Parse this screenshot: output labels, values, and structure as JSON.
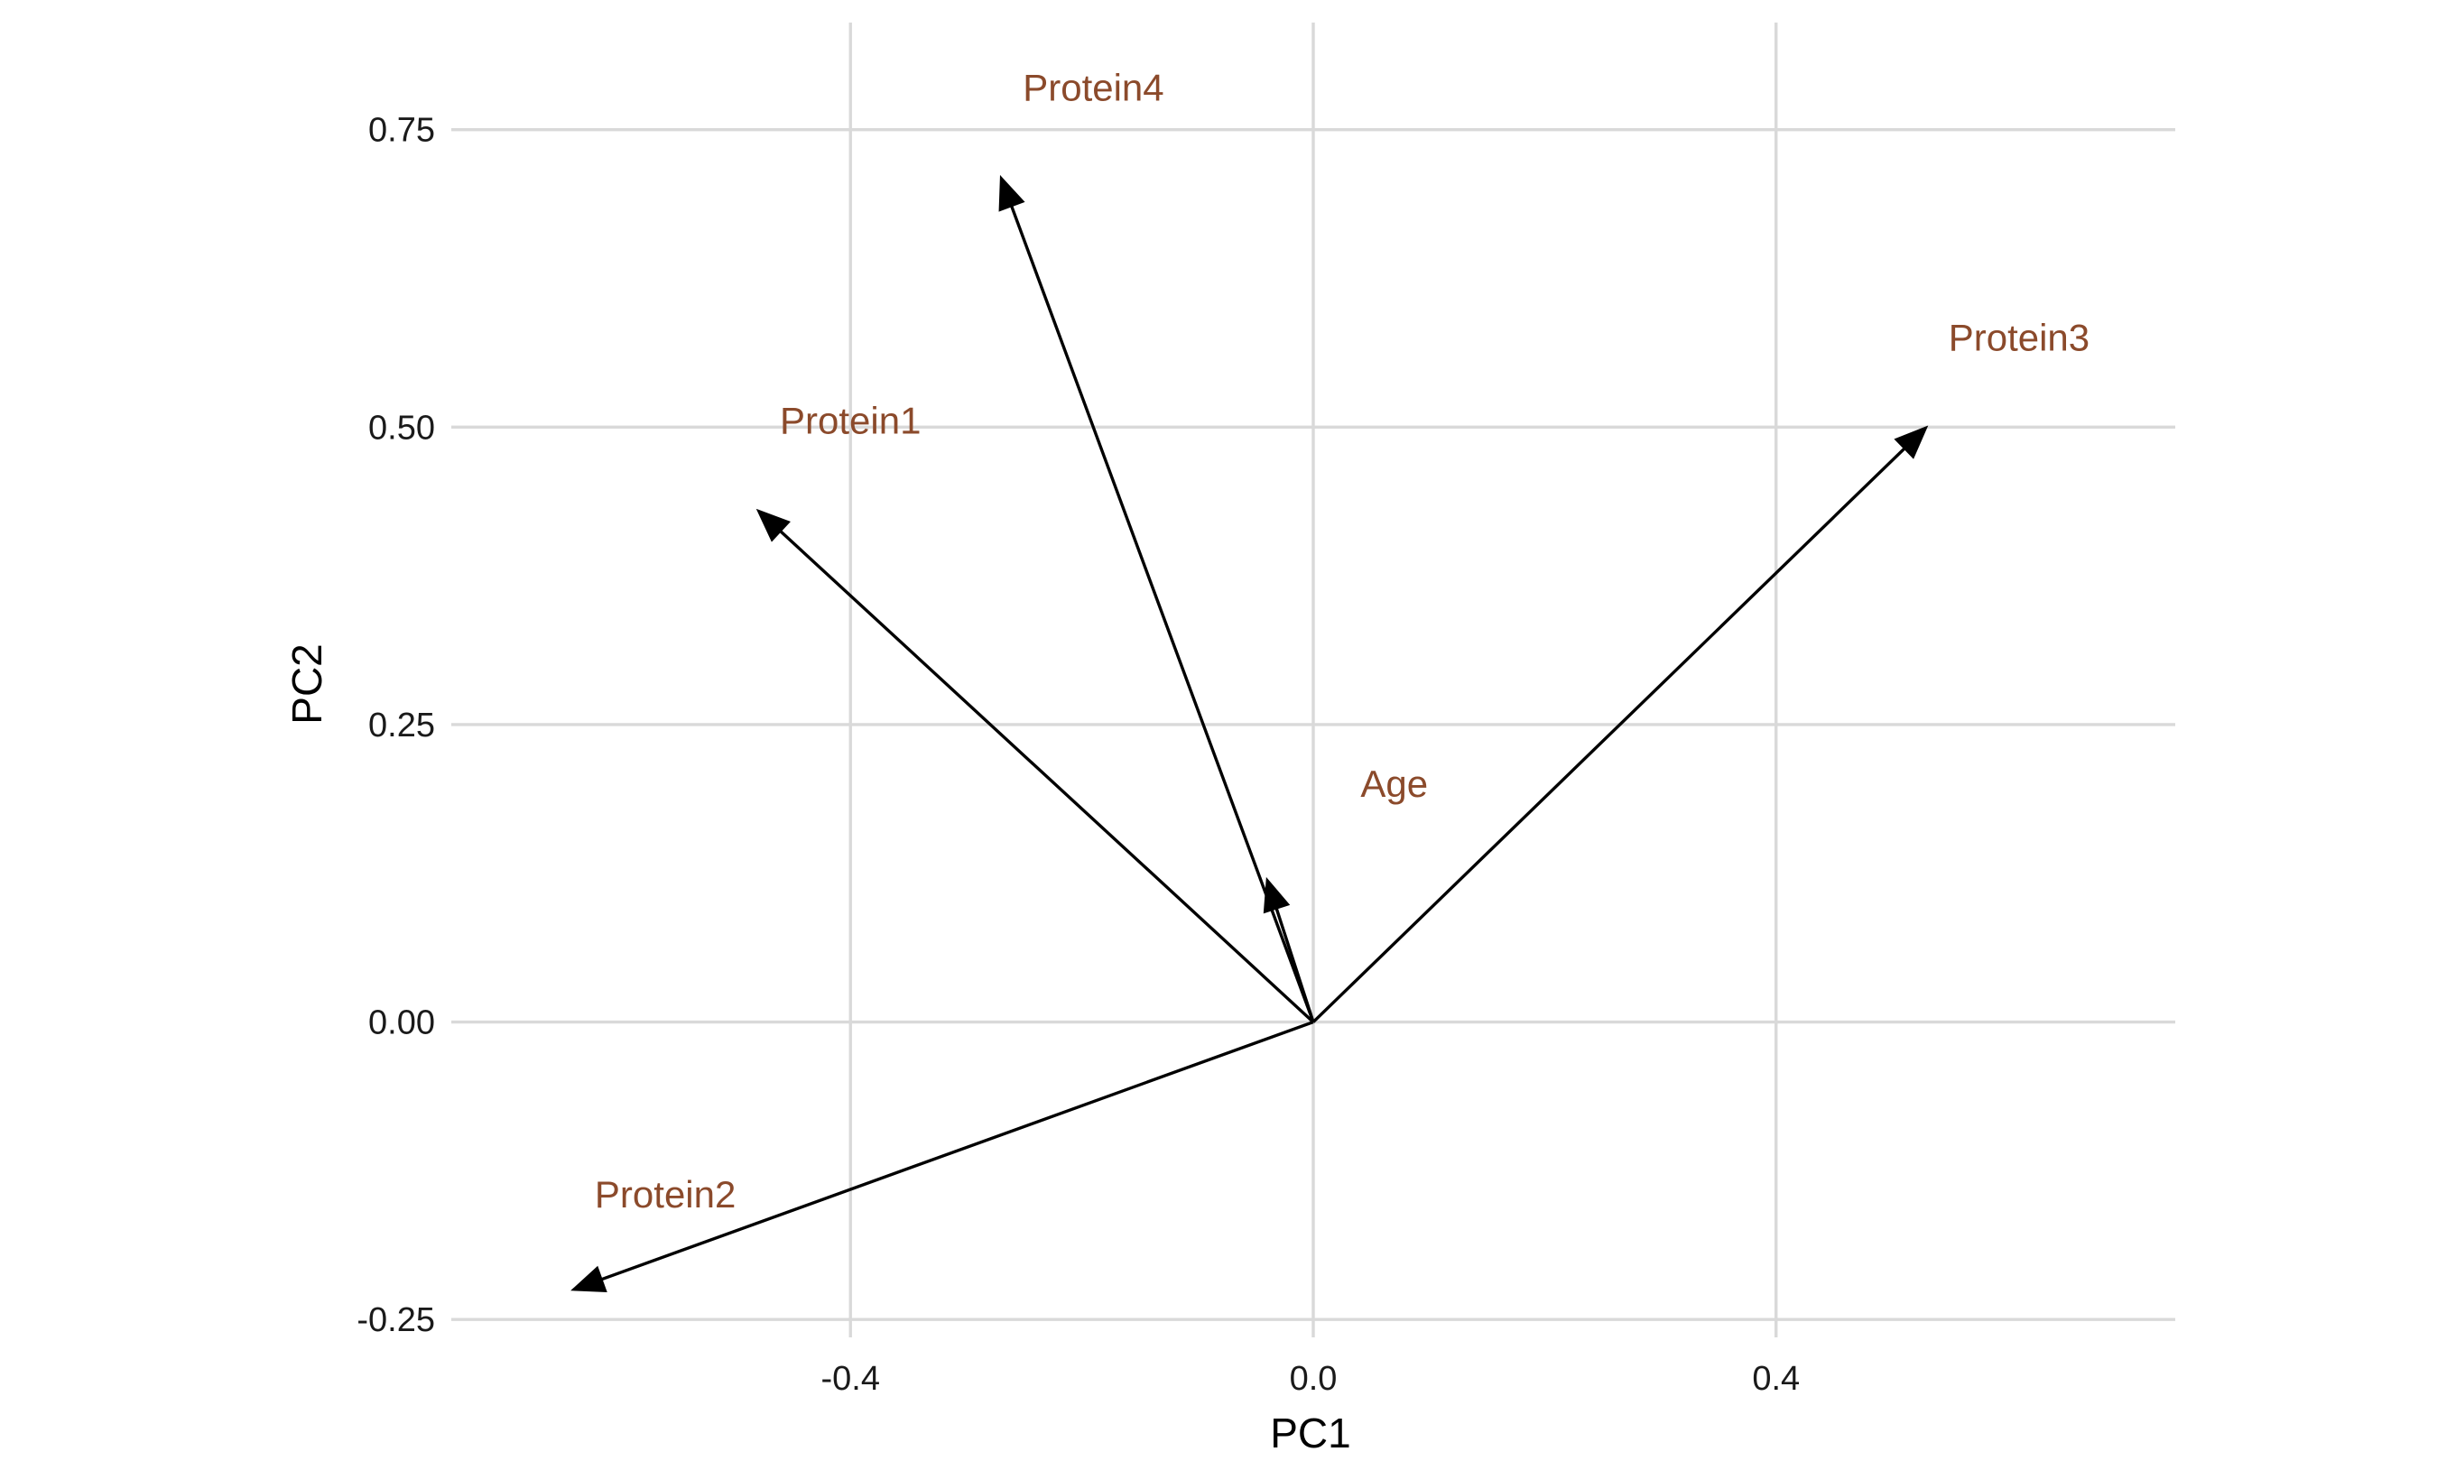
{
  "chart_data": {
    "type": "biplot-arrows",
    "xlabel": "PC1",
    "ylabel": "PC2",
    "xlim": [
      -0.745,
      0.745
    ],
    "ylim": [
      -0.265,
      0.84
    ],
    "x_ticks": [
      -0.4,
      0.0,
      0.4
    ],
    "x_tick_labels": [
      "-0.4",
      "0.0",
      "0.4"
    ],
    "y_ticks": [
      -0.25,
      0.0,
      0.25,
      0.5,
      0.75
    ],
    "y_tick_labels": [
      "-0.25",
      "0.00",
      "0.25",
      "0.50",
      "0.75"
    ],
    "grid": true,
    "label_color": "#8b4a2b",
    "arrow_color": "#000000",
    "origin": [
      0,
      0
    ],
    "vectors": [
      {
        "name": "Protein1",
        "x": -0.48,
        "y": 0.43,
        "label_x": -0.4,
        "label_y": 0.505
      },
      {
        "name": "Protein2",
        "x": -0.64,
        "y": -0.225,
        "label_x": -0.56,
        "label_y": -0.145
      },
      {
        "name": "Protein3",
        "x": 0.53,
        "y": 0.5,
        "label_x": 0.61,
        "label_y": 0.575
      },
      {
        "name": "Protein4",
        "x": -0.27,
        "y": 0.71,
        "label_x": -0.19,
        "label_y": 0.785
      },
      {
        "name": "Age",
        "x": -0.04,
        "y": 0.12,
        "label_x": 0.07,
        "label_y": 0.2
      }
    ]
  }
}
